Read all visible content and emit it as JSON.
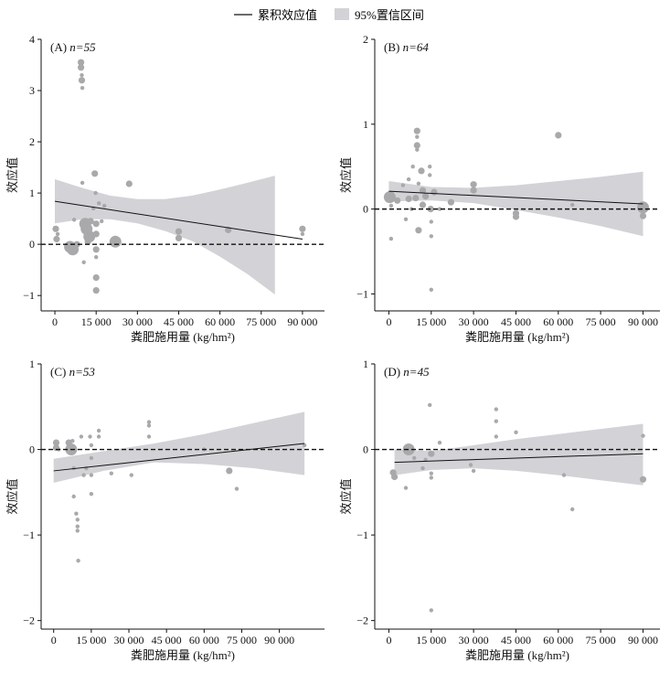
{
  "legend": {
    "line_label": "累积效应值",
    "band_label": "95%置信区间"
  },
  "colors": {
    "points": "#a9a9ab",
    "band": "#d3d2d6",
    "line": "#111111",
    "zero_line": "#111111"
  },
  "chart_data": [
    {
      "type": "scatter",
      "panel": "A",
      "label_prefix": "(A) ",
      "n_label": "n=55",
      "xlabel": "粪肥施用量 (kg/hm²)",
      "ylabel": "效应值",
      "xlim": [
        -5000,
        98000
      ],
      "ylim": [
        -1.3,
        4
      ],
      "xticks": [
        0,
        15000,
        30000,
        45000,
        60000,
        75000,
        90000
      ],
      "xtick_labels": [
        "0",
        "15 000",
        "30 000",
        "45 000",
        "60 000",
        "75 000",
        "90 000"
      ],
      "yticks": [
        -1,
        0,
        1,
        2,
        3,
        4
      ],
      "ytick_labels": [
        "−1",
        "0",
        "1",
        "2",
        "3",
        "4"
      ],
      "fit_line": {
        "x": [
          0,
          90000
        ],
        "y": [
          0.84,
          0.1
        ]
      },
      "ci_band": {
        "x": [
          0,
          10000,
          20000,
          30000,
          40000,
          50000,
          60000,
          70000,
          80000
        ],
        "upper": [
          1.27,
          1.1,
          0.95,
          0.88,
          0.88,
          0.95,
          1.07,
          1.2,
          1.34
        ],
        "lower": [
          0.41,
          0.49,
          0.49,
          0.41,
          0.26,
          0.06,
          -0.24,
          -0.58,
          -0.98
        ]
      },
      "points": [
        {
          "x": 300,
          "y": 0.3,
          "s": 2
        },
        {
          "x": 600,
          "y": 0.1,
          "s": 2
        },
        {
          "x": 1000,
          "y": 0.2,
          "s": 1
        },
        {
          "x": 5500,
          "y": -0.05,
          "s": 3
        },
        {
          "x": 6500,
          "y": -0.1,
          "s": 3
        },
        {
          "x": 7000,
          "y": 0.48,
          "s": 1
        },
        {
          "x": 8000,
          "y": 0.0,
          "s": 2
        },
        {
          "x": 9500,
          "y": 3.55,
          "s": 2
        },
        {
          "x": 9500,
          "y": 3.45,
          "s": 2
        },
        {
          "x": 9800,
          "y": 3.3,
          "s": 1
        },
        {
          "x": 9800,
          "y": 3.2,
          "s": 2
        },
        {
          "x": 10000,
          "y": 3.05,
          "s": 1
        },
        {
          "x": 10000,
          "y": 1.2,
          "s": 1
        },
        {
          "x": 10500,
          "y": -0.35,
          "s": 1
        },
        {
          "x": 11000,
          "y": 0.4,
          "s": 3
        },
        {
          "x": 11500,
          "y": 0.3,
          "s": 3
        },
        {
          "x": 12000,
          "y": 0.05,
          "s": 2
        },
        {
          "x": 12500,
          "y": 0.15,
          "s": 3
        },
        {
          "x": 13000,
          "y": 0.45,
          "s": 2
        },
        {
          "x": 14000,
          "y": 0.7,
          "s": 1
        },
        {
          "x": 14500,
          "y": 1.38,
          "s": 2
        },
        {
          "x": 14800,
          "y": 1.0,
          "s": 1
        },
        {
          "x": 15000,
          "y": 0.4,
          "s": 2
        },
        {
          "x": 15000,
          "y": 0.2,
          "s": 2
        },
        {
          "x": 15000,
          "y": -0.1,
          "s": 2
        },
        {
          "x": 15000,
          "y": -0.25,
          "s": 1
        },
        {
          "x": 15000,
          "y": -0.65,
          "s": 2
        },
        {
          "x": 15000,
          "y": -0.9,
          "s": 2
        },
        {
          "x": 16000,
          "y": 0.8,
          "s": 1
        },
        {
          "x": 17000,
          "y": 0.45,
          "s": 1
        },
        {
          "x": 18000,
          "y": 0.75,
          "s": 1
        },
        {
          "x": 22000,
          "y": 0.05,
          "s": 3
        },
        {
          "x": 27000,
          "y": 1.18,
          "s": 2
        },
        {
          "x": 45000,
          "y": 0.25,
          "s": 2
        },
        {
          "x": 45000,
          "y": 0.12,
          "s": 2
        },
        {
          "x": 63000,
          "y": 0.28,
          "s": 2
        },
        {
          "x": 90000,
          "y": 0.3,
          "s": 2
        },
        {
          "x": 90000,
          "y": 0.2,
          "s": 1
        }
      ]
    },
    {
      "type": "scatter",
      "panel": "B",
      "label_prefix": "(B) ",
      "n_label": "n=64",
      "xlabel": "粪肥施用量 (kg/hm²)",
      "ylabel": "效应值",
      "xlim": [
        -5000,
        96000
      ],
      "ylim": [
        -1.2,
        2
      ],
      "xticks": [
        0,
        15000,
        30000,
        45000,
        60000,
        75000,
        90000
      ],
      "xtick_labels": [
        "0",
        "15 000",
        "30 000",
        "45 000",
        "60 000",
        "75 000",
        "90 000"
      ],
      "yticks": [
        -1,
        0,
        1,
        2
      ],
      "ytick_labels": [
        "−1",
        "0",
        "1",
        "2"
      ],
      "fit_line": {
        "x": [
          0,
          90000
        ],
        "y": [
          0.21,
          0.06
        ]
      },
      "ci_band": {
        "x": [
          0,
          15000,
          30000,
          45000,
          60000,
          75000,
          90000
        ],
        "upper": [
          0.33,
          0.26,
          0.25,
          0.28,
          0.33,
          0.38,
          0.44
        ],
        "lower": [
          0.09,
          0.1,
          0.07,
          -0.01,
          -0.1,
          -0.2,
          -0.32
        ]
      },
      "points": [
        {
          "x": 300,
          "y": 0.14,
          "s": 3
        },
        {
          "x": 800,
          "y": 0.04,
          "s": 1
        },
        {
          "x": 800,
          "y": -0.35,
          "s": 1
        },
        {
          "x": 3000,
          "y": 0.1,
          "s": 2
        },
        {
          "x": 5000,
          "y": 0.28,
          "s": 1
        },
        {
          "x": 6000,
          "y": -0.12,
          "s": 1
        },
        {
          "x": 7000,
          "y": 0.12,
          "s": 2
        },
        {
          "x": 7000,
          "y": 0.35,
          "s": 1
        },
        {
          "x": 8000,
          "y": 0.0,
          "s": 1
        },
        {
          "x": 8500,
          "y": 0.5,
          "s": 1
        },
        {
          "x": 9500,
          "y": 0.13,
          "s": 2
        },
        {
          "x": 10000,
          "y": 0.92,
          "s": 2
        },
        {
          "x": 10000,
          "y": 0.85,
          "s": 1
        },
        {
          "x": 10000,
          "y": 0.75,
          "s": 2
        },
        {
          "x": 10000,
          "y": 0.7,
          "s": 1
        },
        {
          "x": 10500,
          "y": 0.3,
          "s": 1
        },
        {
          "x": 10500,
          "y": -0.25,
          "s": 2
        },
        {
          "x": 11500,
          "y": 0.45,
          "s": 2
        },
        {
          "x": 12000,
          "y": 0.22,
          "s": 2
        },
        {
          "x": 12000,
          "y": 0.05,
          "s": 2
        },
        {
          "x": 13000,
          "y": 0.15,
          "s": 2
        },
        {
          "x": 14500,
          "y": 0.5,
          "s": 1
        },
        {
          "x": 14500,
          "y": 0.4,
          "s": 1
        },
        {
          "x": 14800,
          "y": 0.0,
          "s": 2
        },
        {
          "x": 15000,
          "y": -0.15,
          "s": 1
        },
        {
          "x": 15000,
          "y": -0.32,
          "s": 1
        },
        {
          "x": 15000,
          "y": -0.95,
          "s": 1
        },
        {
          "x": 16000,
          "y": 0.2,
          "s": 2
        },
        {
          "x": 18000,
          "y": 0.0,
          "s": 1
        },
        {
          "x": 22000,
          "y": 0.08,
          "s": 2
        },
        {
          "x": 30000,
          "y": 0.29,
          "s": 2
        },
        {
          "x": 30000,
          "y": 0.22,
          "s": 2
        },
        {
          "x": 45000,
          "y": -0.05,
          "s": 2
        },
        {
          "x": 45000,
          "y": -0.09,
          "s": 2
        },
        {
          "x": 60000,
          "y": 0.87,
          "s": 2
        },
        {
          "x": 65000,
          "y": 0.05,
          "s": 1
        },
        {
          "x": 90000,
          "y": 0.02,
          "s": 3
        },
        {
          "x": 90000,
          "y": -0.08,
          "s": 2
        }
      ]
    },
    {
      "type": "scatter",
      "panel": "C",
      "label_prefix": "(C) ",
      "n_label": "n=53",
      "xlabel": "粪肥施用量 (kg/hm²)",
      "ylabel": "效应值",
      "xlim": [
        -5000,
        108000
      ],
      "ylim": [
        -2.1,
        1
      ],
      "xticks": [
        0,
        15000,
        30000,
        45000,
        60000,
        75000,
        90000
      ],
      "xtick_labels": [
        "0",
        "15 000",
        "30 000",
        "45 000",
        "60 000",
        "75 000",
        "90 000"
      ],
      "yticks": [
        -2,
        -1,
        0,
        1
      ],
      "ytick_labels": [
        "−2",
        "−1",
        "0",
        "1"
      ],
      "fit_line": {
        "x": [
          0,
          100000
        ],
        "y": [
          -0.25,
          0.07
        ]
      },
      "ci_band": {
        "x": [
          0,
          20000,
          40000,
          60000,
          80000,
          100000
        ],
        "upper": [
          -0.11,
          -0.02,
          0.07,
          0.18,
          0.31,
          0.44
        ],
        "lower": [
          -0.39,
          -0.25,
          -0.15,
          -0.17,
          -0.22,
          -0.3
        ]
      },
      "points": [
        {
          "x": 1000,
          "y": 0.08,
          "s": 2
        },
        {
          "x": 1000,
          "y": 0.02,
          "s": 2
        },
        {
          "x": 2000,
          "y": 0.0,
          "s": 1
        },
        {
          "x": 6000,
          "y": 0.08,
          "s": 2
        },
        {
          "x": 6500,
          "y": 0.02,
          "s": 2
        },
        {
          "x": 7000,
          "y": 0.0,
          "s": 3
        },
        {
          "x": 7500,
          "y": 0.1,
          "s": 1
        },
        {
          "x": 8000,
          "y": -0.22,
          "s": 1
        },
        {
          "x": 8000,
          "y": -0.55,
          "s": 1
        },
        {
          "x": 9000,
          "y": -0.75,
          "s": 1
        },
        {
          "x": 9500,
          "y": -0.82,
          "s": 1
        },
        {
          "x": 9500,
          "y": -0.9,
          "s": 1
        },
        {
          "x": 9500,
          "y": -0.95,
          "s": 1
        },
        {
          "x": 9800,
          "y": -1.3,
          "s": 1
        },
        {
          "x": 11000,
          "y": 0.15,
          "s": 1
        },
        {
          "x": 12000,
          "y": -0.3,
          "s": 1
        },
        {
          "x": 13000,
          "y": -0.22,
          "s": 1
        },
        {
          "x": 14500,
          "y": 0.15,
          "s": 1
        },
        {
          "x": 15000,
          "y": 0.05,
          "s": 1
        },
        {
          "x": 15000,
          "y": -0.1,
          "s": 1
        },
        {
          "x": 15000,
          "y": -0.3,
          "s": 1
        },
        {
          "x": 15000,
          "y": -0.52,
          "s": 1
        },
        {
          "x": 18000,
          "y": 0.22,
          "s": 1
        },
        {
          "x": 18000,
          "y": 0.15,
          "s": 1
        },
        {
          "x": 23000,
          "y": -0.28,
          "s": 1
        },
        {
          "x": 31000,
          "y": -0.3,
          "s": 1
        },
        {
          "x": 38000,
          "y": 0.32,
          "s": 1
        },
        {
          "x": 38000,
          "y": 0.28,
          "s": 1
        },
        {
          "x": 38000,
          "y": 0.15,
          "s": 1
        },
        {
          "x": 60000,
          "y": 0.0,
          "s": 1
        },
        {
          "x": 70000,
          "y": -0.25,
          "s": 2
        },
        {
          "x": 73000,
          "y": -0.46,
          "s": 1
        },
        {
          "x": 100000,
          "y": 0.05,
          "s": 1
        }
      ]
    },
    {
      "type": "scatter",
      "panel": "D",
      "label_prefix": "(D) ",
      "n_label": "n=45",
      "xlabel": "粪肥施用量 (kg/hm²)",
      "ylabel": "效应值",
      "xlim": [
        -5000,
        96000
      ],
      "ylim": [
        -2.1,
        1
      ],
      "xticks": [
        0,
        15000,
        30000,
        45000,
        60000,
        75000,
        90000
      ],
      "xtick_labels": [
        "0",
        "15 000",
        "30 000",
        "45 000",
        "60 000",
        "75 000",
        "90 000"
      ],
      "yticks": [
        -2,
        -1,
        0,
        1
      ],
      "ytick_labels": [
        "−2",
        "−1",
        "0",
        "1"
      ],
      "fit_line": {
        "x": [
          2000,
          90000
        ],
        "y": [
          -0.15,
          -0.05
        ]
      },
      "ci_band": {
        "x": [
          2000,
          15000,
          30000,
          45000,
          60000,
          75000,
          90000
        ],
        "upper": [
          0.0,
          -0.02,
          0.05,
          0.12,
          0.18,
          0.24,
          0.3
        ],
        "lower": [
          -0.3,
          -0.24,
          -0.22,
          -0.25,
          -0.3,
          -0.36,
          -0.42
        ]
      },
      "points": [
        {
          "x": 1500,
          "y": -0.27,
          "s": 2
        },
        {
          "x": 2000,
          "y": -0.32,
          "s": 2
        },
        {
          "x": 6000,
          "y": -0.45,
          "s": 1
        },
        {
          "x": 7000,
          "y": 0.0,
          "s": 3
        },
        {
          "x": 9000,
          "y": -0.1,
          "s": 1
        },
        {
          "x": 12000,
          "y": -0.22,
          "s": 1
        },
        {
          "x": 13000,
          "y": -0.12,
          "s": 1
        },
        {
          "x": 14500,
          "y": 0.52,
          "s": 1
        },
        {
          "x": 15000,
          "y": -0.05,
          "s": 2
        },
        {
          "x": 15000,
          "y": -0.28,
          "s": 1
        },
        {
          "x": 15000,
          "y": -0.33,
          "s": 1
        },
        {
          "x": 15000,
          "y": -1.88,
          "s": 1
        },
        {
          "x": 18000,
          "y": 0.08,
          "s": 1
        },
        {
          "x": 29000,
          "y": -0.18,
          "s": 1
        },
        {
          "x": 30000,
          "y": -0.25,
          "s": 1
        },
        {
          "x": 38000,
          "y": 0.47,
          "s": 1
        },
        {
          "x": 38000,
          "y": 0.33,
          "s": 1
        },
        {
          "x": 38000,
          "y": 0.15,
          "s": 1
        },
        {
          "x": 45000,
          "y": 0.2,
          "s": 1
        },
        {
          "x": 62000,
          "y": -0.3,
          "s": 1
        },
        {
          "x": 65000,
          "y": -0.7,
          "s": 1
        },
        {
          "x": 90000,
          "y": -0.35,
          "s": 2
        },
        {
          "x": 90000,
          "y": 0.16,
          "s": 1
        }
      ]
    }
  ]
}
